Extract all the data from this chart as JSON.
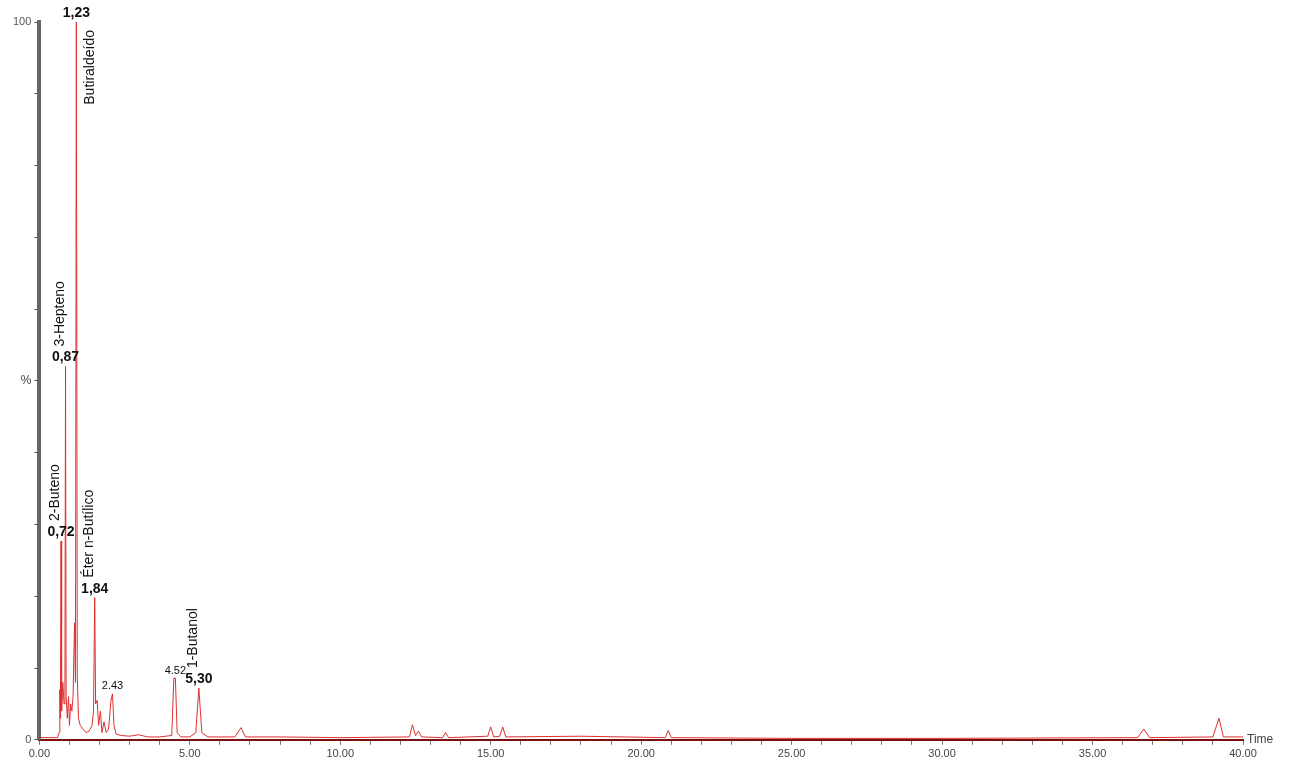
{
  "chart_data": {
    "type": "line",
    "xlabel": "Time",
    "ylabel": "%",
    "x": [
      0,
      0.6,
      0.66,
      0.68,
      0.7,
      0.72,
      0.74,
      0.78,
      0.82,
      0.85,
      0.87,
      0.89,
      0.93,
      0.97,
      1.0,
      1.04,
      1.08,
      1.12,
      1.17,
      1.2,
      1.23,
      1.26,
      1.3,
      1.36,
      1.45,
      1.55,
      1.65,
      1.75,
      1.8,
      1.84,
      1.87,
      1.92,
      1.97,
      2.03,
      2.08,
      2.15,
      2.22,
      2.3,
      2.38,
      2.43,
      2.48,
      2.55,
      2.7,
      3.0,
      3.3,
      3.6,
      4.0,
      4.4,
      4.47,
      4.52,
      4.58,
      4.7,
      5.0,
      5.2,
      5.3,
      5.4,
      5.6,
      6.5,
      6.7,
      6.85,
      8,
      10,
      12.3,
      12.4,
      12.5,
      12.6,
      12.7,
      13.4,
      13.5,
      13.6,
      14.9,
      15.0,
      15.1,
      15.3,
      15.4,
      15.5,
      18,
      20.8,
      20.9,
      21.0,
      25,
      30,
      36.5,
      36.7,
      36.9,
      39.0,
      39.2,
      39.35,
      40
    ],
    "series": [
      {
        "color": "#e03030",
        "values": [
          0.3,
          0.3,
          1,
          7,
          3,
          27.7,
          4,
          8,
          5,
          6,
          52,
          6,
          3,
          6,
          2,
          5,
          4,
          6,
          16.3,
          8,
          100,
          9,
          3,
          2,
          1.5,
          1,
          1.2,
          2,
          4,
          19.8,
          5,
          5.5,
          2,
          4,
          1,
          2.5,
          1,
          1.5,
          5.5,
          6.4,
          2,
          0.8,
          0.6,
          0.5,
          0.7,
          0.4,
          0.4,
          0.6,
          8.6,
          8.6,
          1,
          0.4,
          0.4,
          1,
          7.2,
          1,
          0.4,
          0.4,
          1.7,
          0.4,
          0.4,
          0.3,
          0.4,
          2.1,
          0.6,
          1.2,
          0.4,
          0.3,
          1,
          0.3,
          0.5,
          1.8,
          0.4,
          0.5,
          1.8,
          0.4,
          0.5,
          0.3,
          1.3,
          0.3,
          0.2,
          0.2,
          0.3,
          1.5,
          0.3,
          0.4,
          3.0,
          0.4,
          0.4
        ]
      }
    ],
    "xlim": [
      0,
      40
    ],
    "xticks": [
      {
        "value": 0,
        "label": "0.00"
      },
      {
        "value": 1,
        "label": null
      },
      {
        "value": 2,
        "label": null
      },
      {
        "value": 3,
        "label": null
      },
      {
        "value": 4,
        "label": null
      },
      {
        "value": 5,
        "label": "5.00"
      },
      {
        "value": 6,
        "label": null
      },
      {
        "value": 7,
        "label": null
      },
      {
        "value": 8,
        "label": null
      },
      {
        "value": 9,
        "label": null
      },
      {
        "value": 10,
        "label": "10.00"
      },
      {
        "value": 11,
        "label": null
      },
      {
        "value": 12,
        "label": null
      },
      {
        "value": 13,
        "label": null
      },
      {
        "value": 14,
        "label": null
      },
      {
        "value": 15,
        "label": "15.00"
      },
      {
        "value": 16,
        "label": null
      },
      {
        "value": 17,
        "label": null
      },
      {
        "value": 18,
        "label": null
      },
      {
        "value": 19,
        "label": null
      },
      {
        "value": 20,
        "label": "20.00"
      },
      {
        "value": 21,
        "label": null
      },
      {
        "value": 22,
        "label": null
      },
      {
        "value": 23,
        "label": null
      },
      {
        "value": 24,
        "label": null
      },
      {
        "value": 25,
        "label": "25.00"
      },
      {
        "value": 26,
        "label": null
      },
      {
        "value": 27,
        "label": null
      },
      {
        "value": 28,
        "label": null
      },
      {
        "value": 29,
        "label": null
      },
      {
        "value": 30,
        "label": "30.00"
      },
      {
        "value": 31,
        "label": null
      },
      {
        "value": 32,
        "label": null
      },
      {
        "value": 33,
        "label": null
      },
      {
        "value": 34,
        "label": null
      },
      {
        "value": 35,
        "label": "35.00"
      },
      {
        "value": 36,
        "label": null
      },
      {
        "value": 37,
        "label": null
      },
      {
        "value": 38,
        "label": null
      },
      {
        "value": 39,
        "label": null
      },
      {
        "value": 40,
        "label": "40.00"
      }
    ],
    "ylim": [
      0,
      100
    ],
    "yticks": [
      0,
      {
        "value": 10,
        "label": null
      },
      {
        "value": 20,
        "label": null
      },
      {
        "value": 30,
        "label": null
      },
      {
        "value": 40,
        "label": null
      },
      {
        "value": 50,
        "label": null
      },
      {
        "value": 60,
        "label": null
      },
      {
        "value": 70,
        "label": null
      },
      {
        "value": 80,
        "label": null
      },
      {
        "value": 90,
        "label": null
      },
      100
    ],
    "annotations": [
      {
        "text": "1,23",
        "x": 1.23,
        "y": 100
      },
      {
        "text": "Butiraldeído",
        "x": 1.23,
        "y": 100
      },
      {
        "text": "0,87",
        "x": 0.87,
        "y": 52
      },
      {
        "text": "3-Hepteno",
        "x": 0.87,
        "y": 52
      },
      {
        "text": "0,72",
        "x": 0.72,
        "y": 27.7
      },
      {
        "text": "2-Buteno",
        "x": 0.72,
        "y": 27.7
      },
      {
        "text": "1,84",
        "x": 1.84,
        "y": 19.8
      },
      {
        "text": "Éter n-Butílico",
        "x": 1.84,
        "y": 19.8
      },
      {
        "text": "5,30",
        "x": 5.3,
        "y": 7.2
      },
      {
        "text": "1-Butanol",
        "x": 5.3,
        "y": 7.2
      },
      {
        "text": "4.52",
        "x": 4.52,
        "y": 8.6
      },
      {
        "text": "2.43",
        "x": 2.43,
        "y": 6.4
      }
    ]
  }
}
